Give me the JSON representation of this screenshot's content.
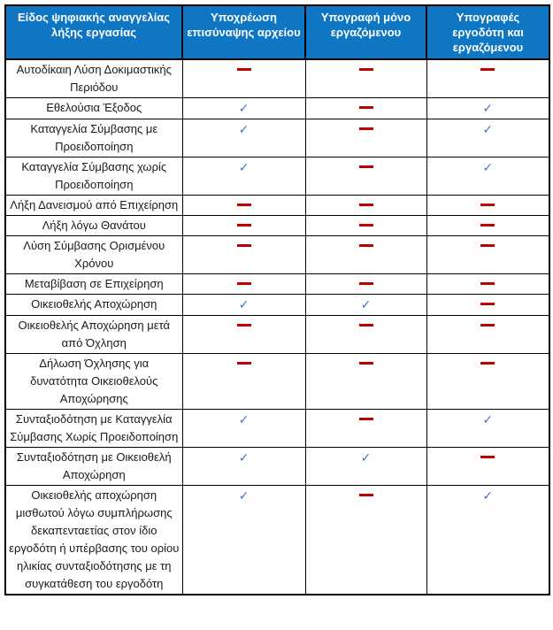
{
  "table": {
    "headers": [
      "Είδος ψηφιακής αναγγελίας λήξης εργασίας",
      "Υποχρέωση επισύναψης αρχείου",
      "Υπογραφή μόνο εργαζόμενου",
      "Υπογραφές εργοδότη και εργαζόμενου"
    ],
    "symbols": {
      "check": "✓",
      "dash": "—"
    },
    "colors": {
      "header_bg": "#0E76C2",
      "header_text": "#FFFFFF",
      "check": "#4472C4",
      "dash": "#C00000",
      "border": "#000000"
    },
    "rows": [
      {
        "label": "Αυτοδίκαιη Λύση Δοκιμαστικής Περιόδου",
        "marks": [
          "dash",
          "dash",
          "dash"
        ]
      },
      {
        "label": "Εθελούσια Έξοδος",
        "marks": [
          "check",
          "dash",
          "check"
        ]
      },
      {
        "label": "Καταγγελία Σύμβασης με Προειδοποίηση",
        "marks": [
          "check",
          "dash",
          "check"
        ]
      },
      {
        "label": "Καταγγελία Σύμβασης χωρίς Προειδοποίηση",
        "marks": [
          "check",
          "dash",
          "check"
        ]
      },
      {
        "label": "Λήξη Δανεισμού από Επιχείρηση",
        "marks": [
          "dash",
          "dash",
          "dash"
        ]
      },
      {
        "label": "Λήξη λόγω Θανάτου",
        "marks": [
          "dash",
          "dash",
          "dash"
        ]
      },
      {
        "label": "Λύση Σύμβασης Ορισμένου Χρόνου",
        "marks": [
          "dash",
          "dash",
          "dash"
        ]
      },
      {
        "label": "Μεταβίβαση σε Επιχείρηση",
        "marks": [
          "dash",
          "dash",
          "dash"
        ]
      },
      {
        "label": "Οικειοθελής Αποχώρηση",
        "marks": [
          "check",
          "check",
          "dash"
        ]
      },
      {
        "label": "Οικειοθελής Αποχώρηση μετά από Όχληση",
        "marks": [
          "dash",
          "dash",
          "dash"
        ]
      },
      {
        "label": "Δήλωση Όχλησης για δυνατότητα Οικειοθελούς Αποχώρησης",
        "marks": [
          "dash",
          "dash",
          "dash"
        ]
      },
      {
        "label": "Συνταξιοδότηση με Καταγγελία Σύμβασης Χωρίς Προειδοποίηση",
        "marks": [
          "check",
          "dash",
          "check"
        ]
      },
      {
        "label": "Συνταξιοδότηση με Οικειοθελή Αποχώρηση",
        "marks": [
          "check",
          "check",
          "dash"
        ]
      },
      {
        "label": "Οικειοθελής αποχώρηση μισθωτού λόγω συμπλήρωσης δεκαπενταετίας στον ίδιο εργοδότη ή υπέρβασης του ορίου ηλικίας συνταξιοδότησης με τη συγκατάθεση του εργοδότη",
        "marks": [
          "check",
          "dash",
          "check"
        ]
      }
    ]
  }
}
